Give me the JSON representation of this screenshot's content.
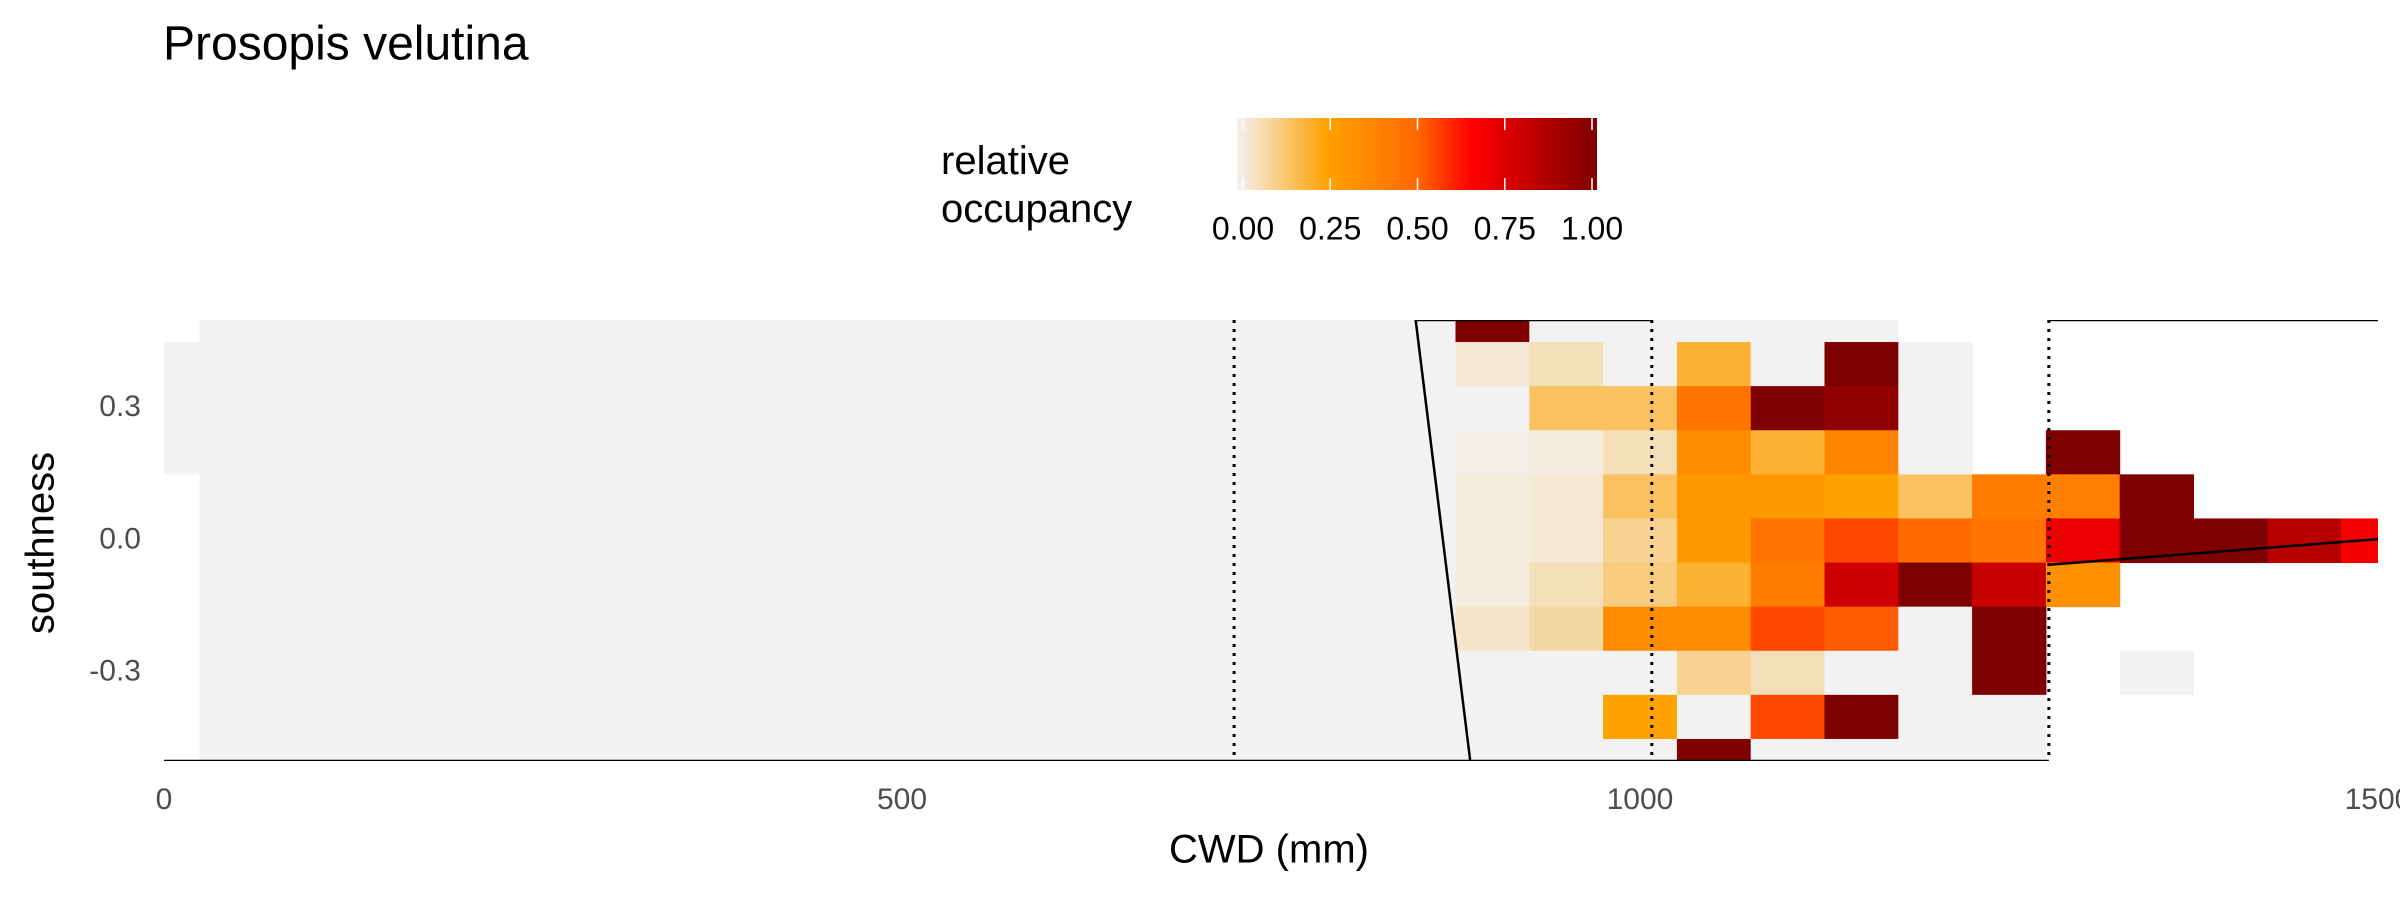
{
  "chart_data": {
    "type": "heatmap",
    "title": "Prosopis velutina",
    "x_label": "CWD (mm)",
    "y_label": "southness",
    "legend_title": "relative\noccupancy",
    "xlim": [
      0,
      1500
    ],
    "ylim": [
      -0.5,
      0.5
    ],
    "xticks": [
      0,
      500,
      1000,
      1500
    ],
    "yticks": [
      -0.3,
      {
        "value": 0,
        "label": "0.0"
      },
      0.3
    ],
    "legend_ticks": [
      {
        "value": 0,
        "label": "0.00"
      },
      {
        "value": 0.25,
        "label": "0.25"
      },
      {
        "value": 0.5,
        "label": "0.50"
      },
      {
        "value": 0.75,
        "label": "0.75"
      },
      {
        "value": 1,
        "label": "1.00"
      }
    ],
    "colorscale": [
      [
        0,
        "#f2f2f2"
      ],
      [
        0.25,
        "#ffa200"
      ],
      [
        0.5,
        "#ff6a00"
      ],
      [
        0.65,
        "#ff0000"
      ],
      [
        1,
        "#7f0000"
      ]
    ],
    "x": [
      900,
      950,
      1000,
      1050,
      1100,
      1150,
      1200,
      1250,
      1300,
      1350,
      1400,
      1450,
      1500
    ],
    "y": [
      0.5,
      0.4,
      0.3,
      0.2,
      0.1,
      0,
      -0.1,
      -0.2,
      -0.3,
      -0.4,
      -0.5
    ],
    "values": [
      [
        1,
        0,
        0,
        0,
        0,
        0,
        null,
        null,
        null,
        null,
        null,
        null,
        null
      ],
      [
        0.03,
        0.06,
        0,
        0.2,
        0,
        1,
        0,
        null,
        null,
        null,
        null,
        null,
        null
      ],
      [
        0,
        0.15,
        0.15,
        0.45,
        1,
        0.95,
        0,
        null,
        null,
        null,
        null,
        null,
        null
      ],
      [
        0.01,
        0.02,
        0.06,
        0.35,
        0.2,
        0.38,
        0,
        null,
        1,
        null,
        null,
        null,
        null
      ],
      [
        0.02,
        0.03,
        0.15,
        0.3,
        0.3,
        0.25,
        0.15,
        0.42,
        0.4,
        1,
        null,
        null,
        null
      ],
      [
        0.02,
        0.03,
        0.1,
        0.28,
        0.45,
        0.55,
        0.5,
        0.45,
        0.7,
        1,
        1,
        0.85,
        0.68
      ],
      [
        0.02,
        0.06,
        0.12,
        0.2,
        0.42,
        0.78,
        1,
        0.8,
        0.33,
        null,
        null,
        null,
        null
      ],
      [
        0.04,
        0.08,
        0.35,
        0.35,
        0.55,
        0.52,
        0,
        1,
        null,
        null,
        null,
        null,
        null
      ],
      [
        0,
        0,
        0,
        0.1,
        0.06,
        0,
        0,
        1,
        null,
        0,
        null,
        null,
        null
      ],
      [
        0,
        0,
        0.25,
        0,
        0.55,
        1,
        0,
        0,
        null,
        null,
        null,
        null,
        null
      ],
      [
        0,
        0,
        0,
        1,
        0,
        0,
        0,
        0,
        null,
        null,
        null,
        null,
        null
      ]
    ],
    "blocks": [
      {
        "x": [
          24,
          875
        ],
        "y": [
          -0.5,
          0.5
        ],
        "value": 0
      },
      {
        "x": [
          0,
          24
        ],
        "y": [
          0.15,
          0.45
        ],
        "value": 0
      }
    ],
    "vlines": [
      725,
      1008,
      1277
    ],
    "lines": [
      {
        "x": [
          848,
          885
        ],
        "y": [
          0.5,
          -0.5
        ]
      },
      {
        "x": [
          0,
          1277
        ],
        "y": [
          -0.5,
          -0.5
        ]
      },
      {
        "x": [
          848,
          1008
        ],
        "y": [
          0.5,
          0.5
        ]
      },
      {
        "x": [
          1277,
          1500
        ],
        "y": [
          0.5,
          0.5
        ]
      },
      {
        "x": [
          1277,
          1500
        ],
        "y": [
          -0.055,
          0.003
        ]
      }
    ]
  }
}
